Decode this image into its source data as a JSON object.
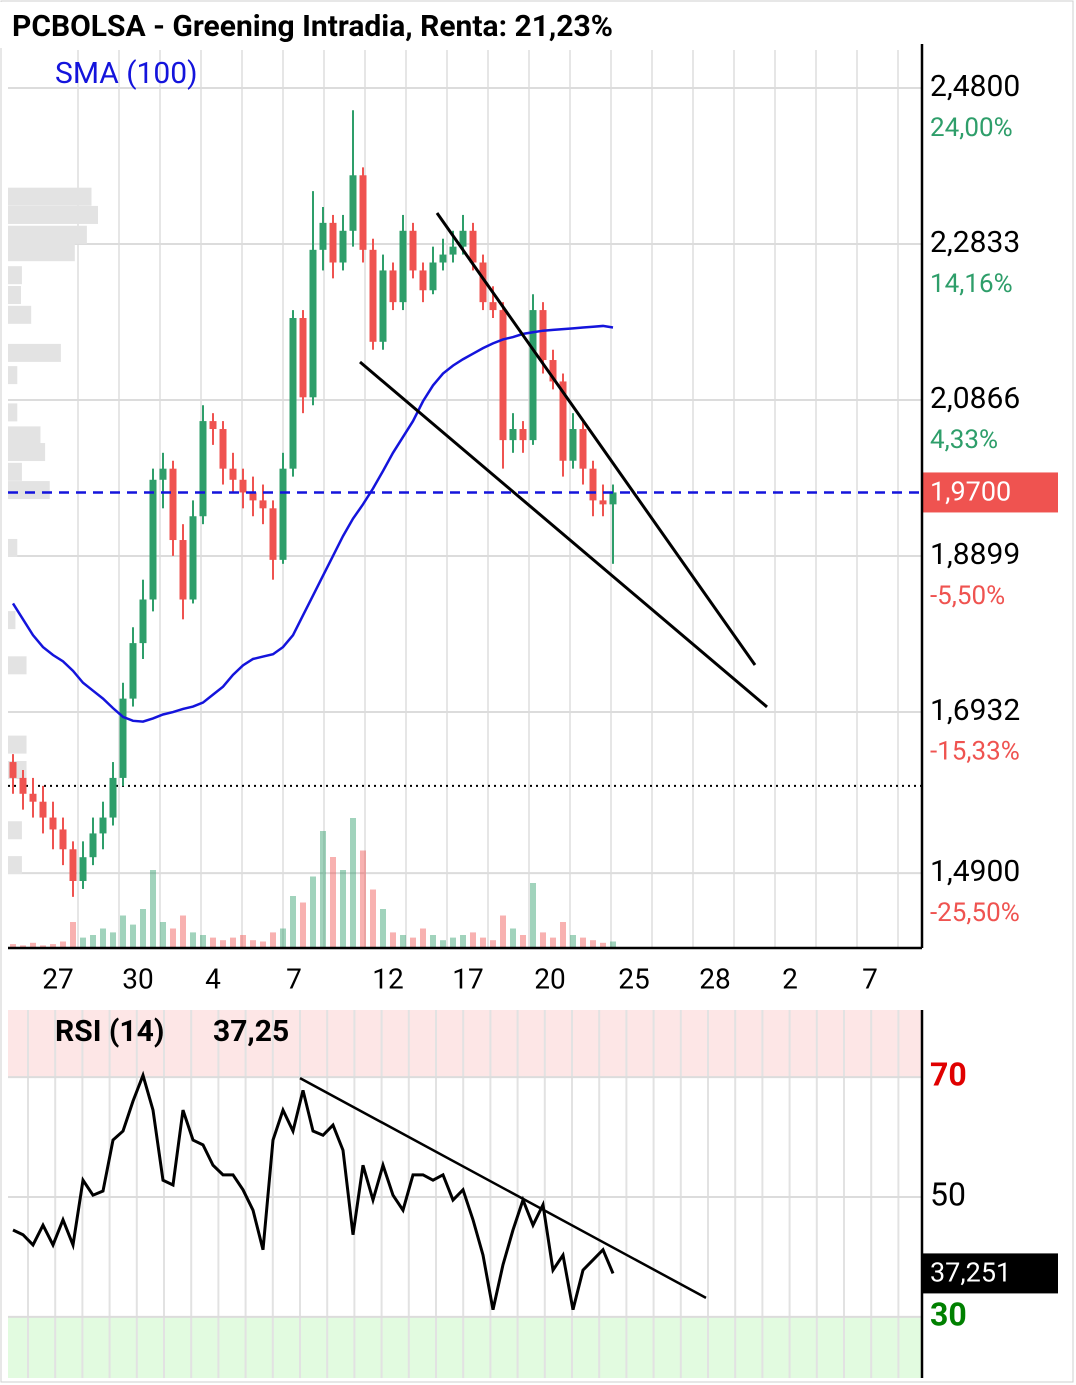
{
  "chart_data": [
    {
      "type": "candlestick",
      "title": "PCBOLSA - Greening Intradia, Renta: 21,23%",
      "up_color": "#2e9e6a",
      "down_color": "#ef5350",
      "x": [
        0.5,
        1.5,
        2.5,
        3.5,
        4.5,
        5.5,
        6.5,
        7.5,
        8.5,
        9.5,
        10.5,
        11.5,
        12.5,
        13.5,
        14.5,
        15.5,
        16.5,
        17.5,
        18.5,
        19.5,
        20.5,
        21.5,
        22.5,
        23.5,
        24.5,
        25.5,
        26.5,
        27.5,
        28.5,
        29.5,
        30.5,
        31.5,
        32.5,
        33.5,
        34.5,
        35.5,
        36.5,
        37.5,
        38.5,
        39.5,
        40.5,
        41.5,
        42.5,
        43.5,
        44.5,
        45.5,
        46.5,
        47.5,
        48.5,
        49.5,
        50.5,
        51.5,
        52.5,
        53.5,
        54.5,
        55.5,
        56.5,
        57.5,
        58.5,
        59.5,
        60.5
      ],
      "ohlc": [
        [
          1.63,
          1.64,
          1.59,
          1.61
        ],
        [
          1.61,
          1.62,
          1.57,
          1.59
        ],
        [
          1.59,
          1.61,
          1.56,
          1.58
        ],
        [
          1.58,
          1.6,
          1.54,
          1.56
        ],
        [
          1.56,
          1.58,
          1.52,
          1.545
        ],
        [
          1.545,
          1.56,
          1.5,
          1.52
        ],
        [
          1.52,
          1.53,
          1.46,
          1.48
        ],
        [
          1.48,
          1.53,
          1.47,
          1.51
        ],
        [
          1.51,
          1.56,
          1.5,
          1.54
        ],
        [
          1.54,
          1.58,
          1.52,
          1.56
        ],
        [
          1.56,
          1.63,
          1.55,
          1.61
        ],
        [
          1.61,
          1.73,
          1.6,
          1.71
        ],
        [
          1.71,
          1.8,
          1.7,
          1.78
        ],
        [
          1.78,
          1.86,
          1.76,
          1.835
        ],
        [
          1.835,
          2.0,
          1.82,
          1.986
        ],
        [
          1.986,
          2.02,
          1.95,
          2.0
        ],
        [
          2.0,
          2.01,
          1.89,
          1.91
        ],
        [
          1.91,
          1.93,
          1.81,
          1.835
        ],
        [
          1.835,
          1.96,
          1.83,
          1.94
        ],
        [
          1.94,
          2.08,
          1.93,
          2.06
        ],
        [
          2.06,
          2.07,
          2.03,
          2.05
        ],
        [
          2.05,
          2.06,
          1.98,
          2.0
        ],
        [
          2.0,
          2.02,
          1.97,
          1.986
        ],
        [
          1.986,
          2.0,
          1.95,
          1.97
        ],
        [
          1.97,
          1.99,
          1.94,
          1.96
        ],
        [
          1.96,
          1.98,
          1.93,
          1.95
        ],
        [
          1.95,
          1.96,
          1.86,
          1.885
        ],
        [
          1.885,
          2.02,
          1.88,
          2.0
        ],
        [
          2.0,
          2.2,
          1.99,
          2.19
        ],
        [
          2.19,
          2.2,
          2.07,
          2.09
        ],
        [
          2.09,
          2.35,
          2.08,
          2.276
        ],
        [
          2.276,
          2.33,
          2.25,
          2.31
        ],
        [
          2.31,
          2.32,
          2.24,
          2.26
        ],
        [
          2.26,
          2.32,
          2.25,
          2.3
        ],
        [
          2.3,
          2.452,
          2.28,
          2.37
        ],
        [
          2.37,
          2.38,
          2.26,
          2.276
        ],
        [
          2.276,
          2.29,
          2.15,
          2.16
        ],
        [
          2.16,
          2.27,
          2.15,
          2.25
        ],
        [
          2.25,
          2.26,
          2.2,
          2.21
        ],
        [
          2.21,
          2.32,
          2.2,
          2.3
        ],
        [
          2.3,
          2.31,
          2.24,
          2.25
        ],
        [
          2.25,
          2.26,
          2.21,
          2.225
        ],
        [
          2.225,
          2.28,
          2.22,
          2.26
        ],
        [
          2.26,
          2.29,
          2.25,
          2.27
        ],
        [
          2.27,
          2.3,
          2.26,
          2.28
        ],
        [
          2.28,
          2.32,
          2.27,
          2.3
        ],
        [
          2.3,
          2.31,
          2.25,
          2.26
        ],
        [
          2.26,
          2.27,
          2.2,
          2.21
        ],
        [
          2.21,
          2.23,
          2.19,
          2.2
        ],
        [
          2.2,
          2.21,
          2.0,
          2.036
        ],
        [
          2.036,
          2.07,
          2.02,
          2.05
        ],
        [
          2.05,
          2.06,
          2.02,
          2.036
        ],
        [
          2.036,
          2.22,
          2.03,
          2.2
        ],
        [
          2.2,
          2.21,
          2.12,
          2.137
        ],
        [
          2.137,
          2.15,
          2.1,
          2.11
        ],
        [
          2.11,
          2.12,
          1.99,
          2.01
        ],
        [
          2.01,
          2.07,
          2.0,
          2.05
        ],
        [
          2.05,
          2.06,
          1.98,
          2.0
        ],
        [
          2.0,
          2.01,
          1.94,
          1.96
        ],
        [
          1.96,
          1.98,
          1.94,
          1.955
        ],
        [
          1.955,
          1.98,
          1.88,
          1.97
        ]
      ],
      "volume": [
        3,
        2,
        4,
        2,
        3,
        5,
        20,
        8,
        10,
        15,
        12,
        25,
        18,
        30,
        60,
        20,
        15,
        25,
        12,
        10,
        8,
        6,
        8,
        10,
        6,
        5,
        12,
        15,
        40,
        35,
        55,
        90,
        70,
        60,
        100,
        75,
        45,
        30,
        12,
        10,
        8,
        15,
        10,
        6,
        8,
        10,
        12,
        8,
        6,
        25,
        15,
        10,
        50,
        12,
        8,
        20,
        10,
        8,
        6,
        4,
        5
      ],
      "volume_profile": {
        "levels": [
          2.343,
          2.32,
          2.295,
          2.273,
          2.244,
          2.219,
          2.194,
          2.146,
          2.118,
          2.071,
          2.042,
          2.021,
          1.996,
          1.973,
          1.9,
          1.809,
          1.752,
          1.652,
          1.62,
          1.544,
          1.5
        ],
        "values": [
          90,
          97,
          85,
          72,
          15,
          14,
          25,
          57,
          10,
          10,
          35,
          40,
          15,
          45,
          10,
          8,
          20,
          20,
          20,
          15,
          15
        ]
      },
      "series": [
        {
          "name": "SMA (100)",
          "color": "#1414dc",
          "values": [
            1.83,
            1.81,
            1.79,
            1.775,
            1.765,
            1.757,
            1.745,
            1.73,
            1.72,
            1.71,
            1.698,
            1.687,
            1.682,
            1.681,
            1.685,
            1.69,
            1.693,
            1.697,
            1.7,
            1.705,
            1.715,
            1.725,
            1.74,
            1.752,
            1.76,
            1.763,
            1.766,
            1.775,
            1.79,
            1.815,
            1.84,
            1.865,
            1.89,
            1.915,
            1.937,
            1.955,
            1.975,
            1.997,
            2.02,
            2.04,
            2.06,
            2.085,
            2.105,
            2.12,
            2.13,
            2.138,
            2.145,
            2.152,
            2.158,
            2.163,
            2.166,
            2.17,
            2.172,
            2.174,
            2.175,
            2.176,
            2.177,
            2.178,
            2.179,
            2.18,
            2.178
          ]
        }
      ],
      "xlim": [
        0,
        91.4
      ],
      "xticks": [
        {
          "value": 5,
          "label": "27"
        },
        {
          "value": 13,
          "label": "30"
        },
        {
          "value": 20.5,
          "label": "4"
        },
        {
          "value": 28.6,
          "label": "7"
        },
        {
          "value": 38,
          "label": "12"
        },
        {
          "value": 46,
          "label": "17"
        },
        {
          "value": 54.2,
          "label": "20"
        },
        {
          "value": 62.6,
          "label": "25"
        },
        {
          "value": 70.7,
          "label": "28"
        },
        {
          "value": 78.2,
          "label": "2"
        },
        {
          "value": 86.2,
          "label": "7"
        }
      ],
      "ylim": [
        1.3955,
        2.528
      ],
      "yticks": [
        {
          "value": 2.48,
          "label": "2,4800"
        },
        {
          "value": 2.2833,
          "label": "2,2833"
        },
        {
          "value": 2.0866,
          "label": "2,0866"
        },
        {
          "value": 1.8899,
          "label": "1,8899"
        },
        {
          "value": 1.6932,
          "label": "1,6932"
        },
        {
          "value": 1.49,
          "label": "1,4900"
        }
      ],
      "y2lim": [
        -30.225,
        26.4
      ],
      "y2ticks": [
        {
          "value": 24,
          "label": "24,00%"
        },
        {
          "value": 14.16,
          "label": "14,16%"
        },
        {
          "value": 4.33,
          "label": "4,33%"
        },
        {
          "value": -5.5,
          "label": "-5,50%"
        },
        {
          "value": -15.33,
          "label": "-15,33%"
        },
        {
          "value": -25.5,
          "label": "-25,50%"
        }
      ],
      "last_price": {
        "value": 1.97,
        "label": "1,9700",
        "color": "#ef5350",
        "line_color": "#1414dc"
      },
      "reference_line": 1.6,
      "trendlines": [
        {
          "points": [
            [
              42.9,
              2.3224
            ],
            [
              74.7,
              1.7524
            ]
          ]
        },
        {
          "points": [
            [
              35.2,
              2.1345
            ],
            [
              75.9,
              1.6995
            ]
          ]
        }
      ],
      "grid": true
    },
    {
      "type": "line",
      "title": "RSI (14)",
      "header_value": {
        "value": 37.25,
        "label": "37,25"
      },
      "x": [
        0.5,
        1.5,
        2.5,
        3.5,
        4.5,
        5.5,
        6.5,
        7.5,
        8.5,
        9.5,
        10.5,
        11.5,
        12.5,
        13.5,
        14.5,
        15.5,
        16.5,
        17.5,
        18.5,
        19.5,
        20.5,
        21.5,
        22.5,
        23.5,
        24.5,
        25.5,
        26.5,
        27.5,
        28.5,
        29.5,
        30.5,
        31.5,
        32.5,
        33.5,
        34.5,
        35.5,
        36.5,
        37.5,
        38.5,
        39.5,
        40.5,
        41.5,
        42.5,
        43.5,
        44.5,
        45.5,
        46.5,
        47.5,
        48.5,
        49.5,
        50.5,
        51.5,
        52.5,
        53.5,
        54.5,
        55.5,
        56.5,
        57.5,
        58.5,
        59.5,
        60.5
      ],
      "values": [
        44.5,
        43.7,
        42,
        45.3,
        42,
        46.2,
        42,
        52.8,
        50.3,
        51,
        59.5,
        61,
        66,
        70.3,
        64.5,
        52.8,
        52,
        64.5,
        59.5,
        58.7,
        55.3,
        53.7,
        53.7,
        51.2,
        47.8,
        41.2,
        59.5,
        64.5,
        61,
        67.8,
        61,
        60.3,
        62,
        57.8,
        43.7,
        55.3,
        49.5,
        55.3,
        50.3,
        47.8,
        53.7,
        53.7,
        52.8,
        53.7,
        49.5,
        51.2,
        46.2,
        40.3,
        31.2,
        38.7,
        44.5,
        49.5,
        45.3,
        48.7,
        37.8,
        40.3,
        31.2,
        37.8,
        39.5,
        41.2,
        37.25
      ],
      "color": "#000000",
      "last_value": {
        "value": 37.251,
        "label": "37,251"
      },
      "xlim": [
        0,
        91.4
      ],
      "ylim": [
        19.8,
        81.2
      ],
      "yticks": [
        30,
        50,
        70
      ],
      "ytick_colors": [
        "#008000",
        "#000000",
        "#e00000"
      ],
      "bands": [
        {
          "from": 70,
          "to": 81.2,
          "color": "#fde6e6"
        },
        {
          "from": 19.8,
          "to": 30,
          "color": "#e2fbe0"
        }
      ],
      "trendlines": [
        {
          "points": [
            [
              29.2,
              69.83
            ],
            [
              69.8,
              33.17
            ]
          ]
        }
      ],
      "grid": true
    }
  ]
}
